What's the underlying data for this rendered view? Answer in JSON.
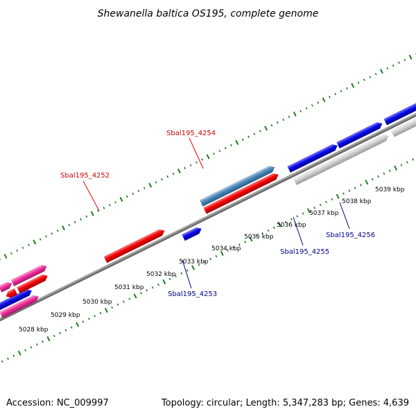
{
  "title": "Shewanella baltica OS195, complete genome",
  "footer": {
    "accession": "Accession: NC_009997",
    "topology": "Topology: circular; Length: 5,347,283 bp; Genes: 4,639"
  },
  "colors": {
    "backbone": "#8a8a8a",
    "ticks": "#1e7a1e",
    "red_gene": "#ee0000",
    "pink_gene": "#ee2e9a",
    "blue_gene": "#0a0ae6",
    "steel_gene": "#4a86b8",
    "grey_gene": "#c8c8c8",
    "label_red": "#cc0000",
    "label_blue": "#00008b"
  },
  "axis_ticks": [
    "5028 kbp",
    "5029 kbp",
    "5030 kbp",
    "5031 kbp",
    "5032 kbp",
    "5033 kbp",
    "5034 kbp",
    "5035 kbp",
    "5036 kbp",
    "5037 kbp",
    "5038 kbp",
    "5039 kbp"
  ],
  "gene_labels": [
    {
      "id": "sbal195-4252",
      "text": "Sbal195_4252",
      "color": "label_red"
    },
    {
      "id": "sbal195-4254",
      "text": "Sbal195_4254",
      "color": "label_red"
    },
    {
      "id": "sbal195-4253",
      "text": "Sbal195_4253",
      "color": "label_blue"
    },
    {
      "id": "sbal195-4255",
      "text": "Sbal195_4255",
      "color": "label_blue"
    },
    {
      "id": "sbal195-4256",
      "text": "Sbal195_4256",
      "color": "label_blue"
    }
  ]
}
